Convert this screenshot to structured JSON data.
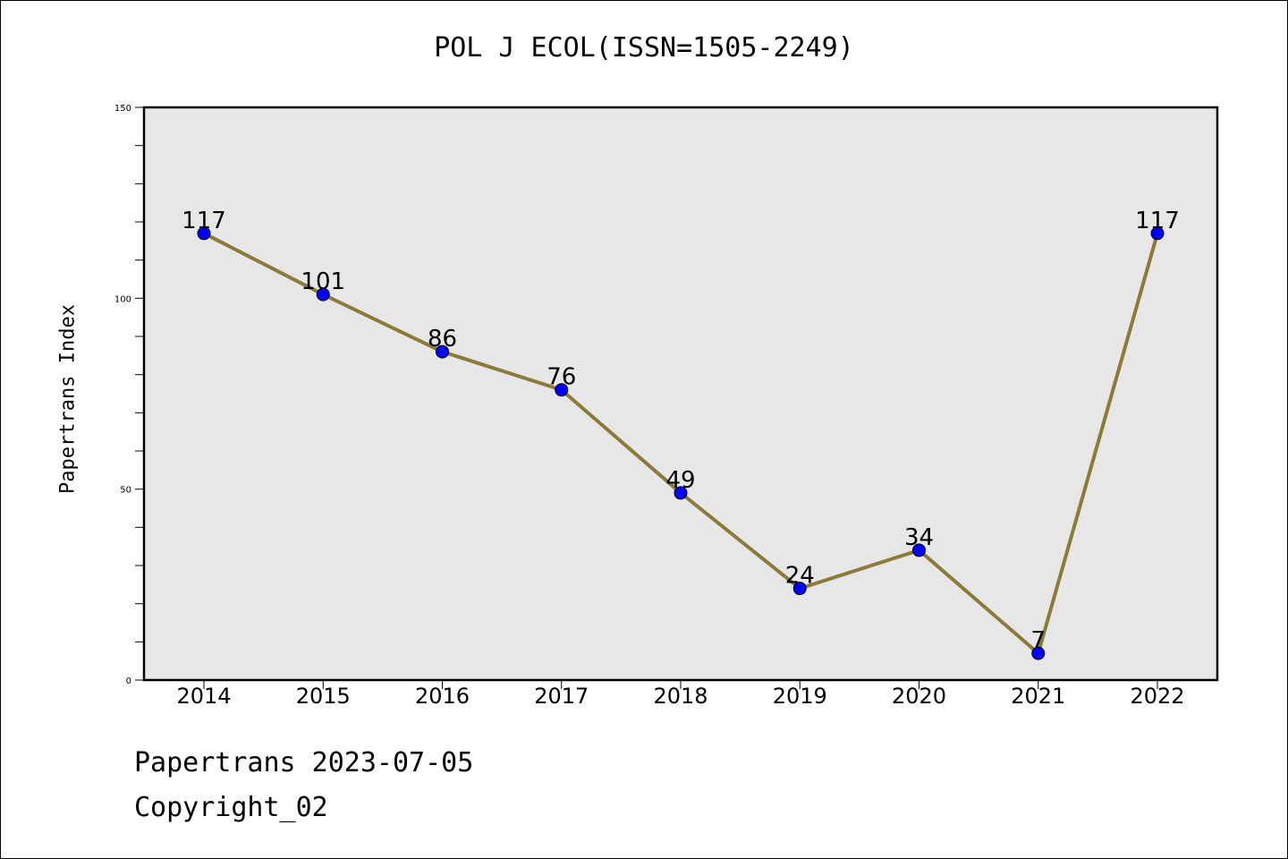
{
  "footer": {
    "date_line": "Papertrans 2023-07-05",
    "copyright_line": "Copyright_02"
  },
  "chart_data": {
    "type": "line",
    "title": "POL J ECOL(ISSN=1505-2249)",
    "xlabel": "",
    "ylabel": "Papertrans Index",
    "categories": [
      "2014",
      "2015",
      "2016",
      "2017",
      "2018",
      "2019",
      "2020",
      "2021",
      "2022"
    ],
    "values": [
      117,
      101,
      86,
      76,
      49,
      24,
      34,
      7,
      117
    ],
    "data_labels": [
      "117",
      "101",
      "86",
      "76",
      "49",
      "24",
      "34",
      "7",
      "117"
    ],
    "ylim": [
      0,
      150
    ],
    "yticks": [
      0,
      50,
      100,
      150
    ],
    "grid": false,
    "colors": {
      "line": "#8b7a3a",
      "marker": "#0000ff",
      "plot_background": "#e7e7e7"
    }
  }
}
